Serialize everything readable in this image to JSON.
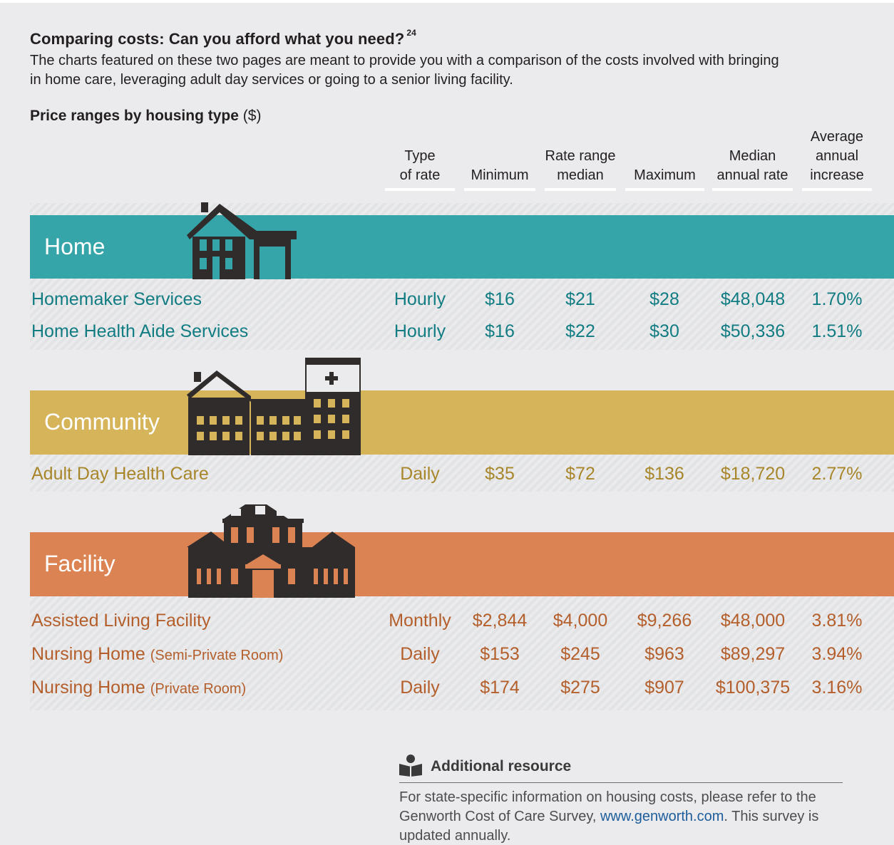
{
  "heading": "Comparing costs: Can you afford what you need?",
  "heading_footnote": "24",
  "intro": "The charts featured on these two pages are meant to provide you with a comparison of the costs involved with bringing in home care, leveraging adult day services or going to a senior living facility.",
  "table_title": "Price ranges by housing type",
  "table_unit": "($)",
  "columns": {
    "type_l1": "Type",
    "type_l2": "of rate",
    "min": "Minimum",
    "median_l1": "Rate range",
    "median_l2": "median",
    "max": "Maximum",
    "annual_l1": "Median",
    "annual_l2": "annual rate",
    "increase_l1": "Average",
    "increase_l2": "annual",
    "increase_l3": "increase"
  },
  "colors": {
    "home": "#35a5a9",
    "home_text": "#117d83",
    "community": "#d6b459",
    "community_text": "#a8862a",
    "facility": "#dc8353",
    "facility_text": "#b45f2b",
    "icon": "#2f2c2b"
  },
  "sections": {
    "home": {
      "label": "Home",
      "icon": "house-icon",
      "rows": [
        {
          "name": "Homemaker Services",
          "type": "Hourly",
          "min": "$16",
          "median": "$21",
          "max": "$28",
          "annual": "$48,048",
          "increase": "1.70%"
        },
        {
          "name": "Home Health Aide Services",
          "type": "Hourly",
          "min": "$16",
          "median": "$22",
          "max": "$30",
          "annual": "$50,336",
          "increase": "1.51%"
        }
      ]
    },
    "community": {
      "label": "Community",
      "icon": "community-buildings-icon",
      "rows": [
        {
          "name": "Adult Day Health Care",
          "type": "Daily",
          "min": "$35",
          "median": "$72",
          "max": "$136",
          "annual": "$18,720",
          "increase": "2.77%"
        }
      ]
    },
    "facility": {
      "label": "Facility",
      "icon": "facility-building-icon",
      "rows": [
        {
          "name": "Assisted Living Facility",
          "sub": "",
          "type": "Monthly",
          "min": "$2,844",
          "median": "$4,000",
          "max": "$9,266",
          "annual": "$48,000",
          "increase": "3.81%"
        },
        {
          "name": "Nursing Home",
          "sub": "(Semi-Private Room)",
          "type": "Daily",
          "min": "$153",
          "median": "$245",
          "max": "$963",
          "annual": "$89,297",
          "increase": "3.94%"
        },
        {
          "name": "Nursing Home",
          "sub": "(Private Room)",
          "type": "Daily",
          "min": "$174",
          "median": "$275",
          "max": "$907",
          "annual": "$100,375",
          "increase": "3.16%"
        }
      ]
    }
  },
  "resource": {
    "icon": "reader-book-icon",
    "title": "Additional resource",
    "text_before": "For state-specific information on housing costs, please refer to the Genworth Cost of Care Survey, ",
    "link": "www.genworth.com",
    "text_after": ". This survey is updated annually."
  }
}
